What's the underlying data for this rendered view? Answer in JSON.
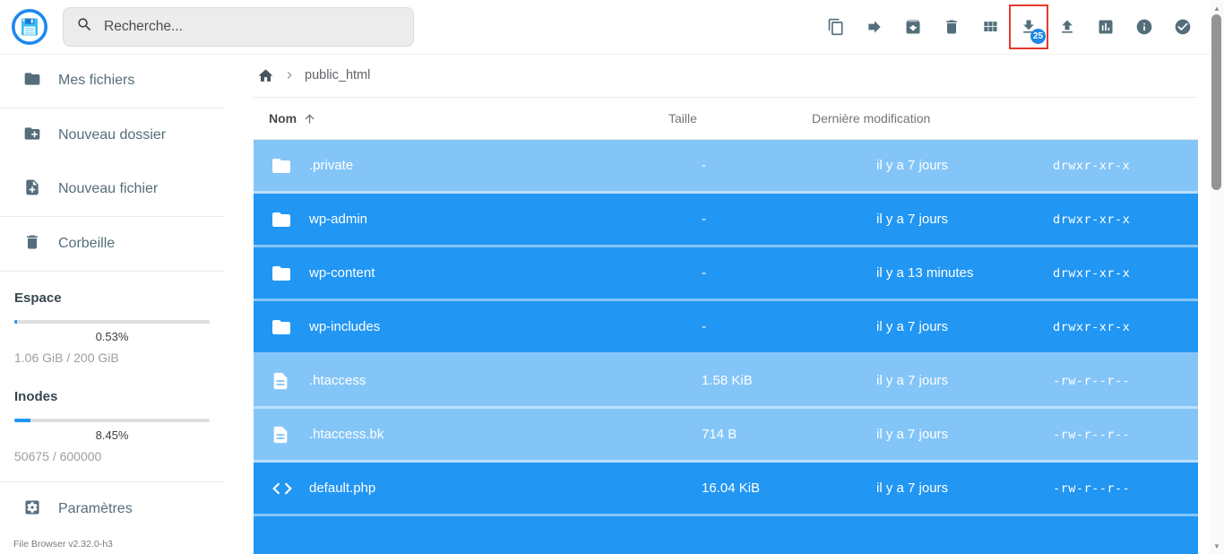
{
  "app": {
    "version_label": "File Browser v2.32.0-h3"
  },
  "header": {
    "search": {
      "placeholder": "Recherche...",
      "icon": "search-icon"
    },
    "toolbar": [
      {
        "label": "copy",
        "icon": "copy-icon"
      },
      {
        "label": "move",
        "icon": "move-arrow-icon"
      },
      {
        "label": "archive",
        "icon": "archive-icon"
      },
      {
        "label": "delete",
        "icon": "trash-icon"
      },
      {
        "label": "switch-view",
        "icon": "grid-view-icon"
      },
      {
        "label": "download",
        "icon": "download-icon",
        "badge": "25",
        "highlighted": true
      },
      {
        "label": "upload",
        "icon": "upload-icon"
      },
      {
        "label": "stats",
        "icon": "bar-chart-icon"
      },
      {
        "label": "info",
        "icon": "info-icon"
      },
      {
        "label": "select-multiple",
        "icon": "check-circle-icon"
      }
    ]
  },
  "sidebar": {
    "items": [
      {
        "label": "Mes fichiers",
        "icon": "folder-icon",
        "divider_after": true
      },
      {
        "label": "Nouveau dossier",
        "icon": "new-folder-icon",
        "divider_after": false
      },
      {
        "label": "Nouveau fichier",
        "icon": "new-file-icon",
        "divider_after": true
      },
      {
        "label": "Corbeille",
        "icon": "trash-icon",
        "divider_after": true
      }
    ],
    "usage": {
      "space": {
        "title": "Espace",
        "percent": "0.53%",
        "detail": "1.06 GiB / 200 GiB"
      },
      "inodes": {
        "title": "Inodes",
        "percent": "8.45%",
        "detail": "50675 / 600000"
      }
    },
    "settings": {
      "label": "Paramètres",
      "icon": "settings-icon"
    }
  },
  "main": {
    "breadcrumb": {
      "path": "public_html"
    },
    "listing": {
      "headers": {
        "name": "Nom",
        "size": "Taille",
        "modified": "Dernière modification"
      },
      "sort": {
        "column": "name",
        "direction": "asc"
      },
      "rows": [
        {
          "name": ".private",
          "type": "folder",
          "size": "-",
          "modified": "il y a 7 jours",
          "perm": "drwxr-xr-x",
          "hidden": true,
          "selected": true
        },
        {
          "name": "wp-admin",
          "type": "folder",
          "size": "-",
          "modified": "il y a 7 jours",
          "perm": "drwxr-xr-x",
          "hidden": false,
          "selected": true
        },
        {
          "name": "wp-content",
          "type": "folder",
          "size": "-",
          "modified": "il y a 13 minutes",
          "perm": "drwxr-xr-x",
          "hidden": false,
          "selected": true
        },
        {
          "name": "wp-includes",
          "type": "folder",
          "size": "-",
          "modified": "il y a 7 jours",
          "perm": "drwxr-xr-x",
          "hidden": false,
          "selected": true
        },
        {
          "name": ".htaccess",
          "type": "file",
          "size": "1.58 KiB",
          "modified": "il y a 7 jours",
          "perm": "-rw-r--r--",
          "hidden": true,
          "selected": true
        },
        {
          "name": ".htaccess.bk",
          "type": "file",
          "size": "714 B",
          "modified": "il y a 7 jours",
          "perm": "-rw-r--r--",
          "hidden": true,
          "selected": true
        },
        {
          "name": "default.php",
          "type": "code",
          "size": "16.04 KiB",
          "modified": "il y a 7 jours",
          "perm": "-rw-r--r--",
          "hidden": false,
          "selected": true
        }
      ],
      "partial_row_visible": true
    }
  },
  "colors": {
    "accent": "#2196f3",
    "icon_gray": "#546e7a",
    "highlight_red": "#e8392c",
    "badge_blue": "#1e88e5"
  }
}
